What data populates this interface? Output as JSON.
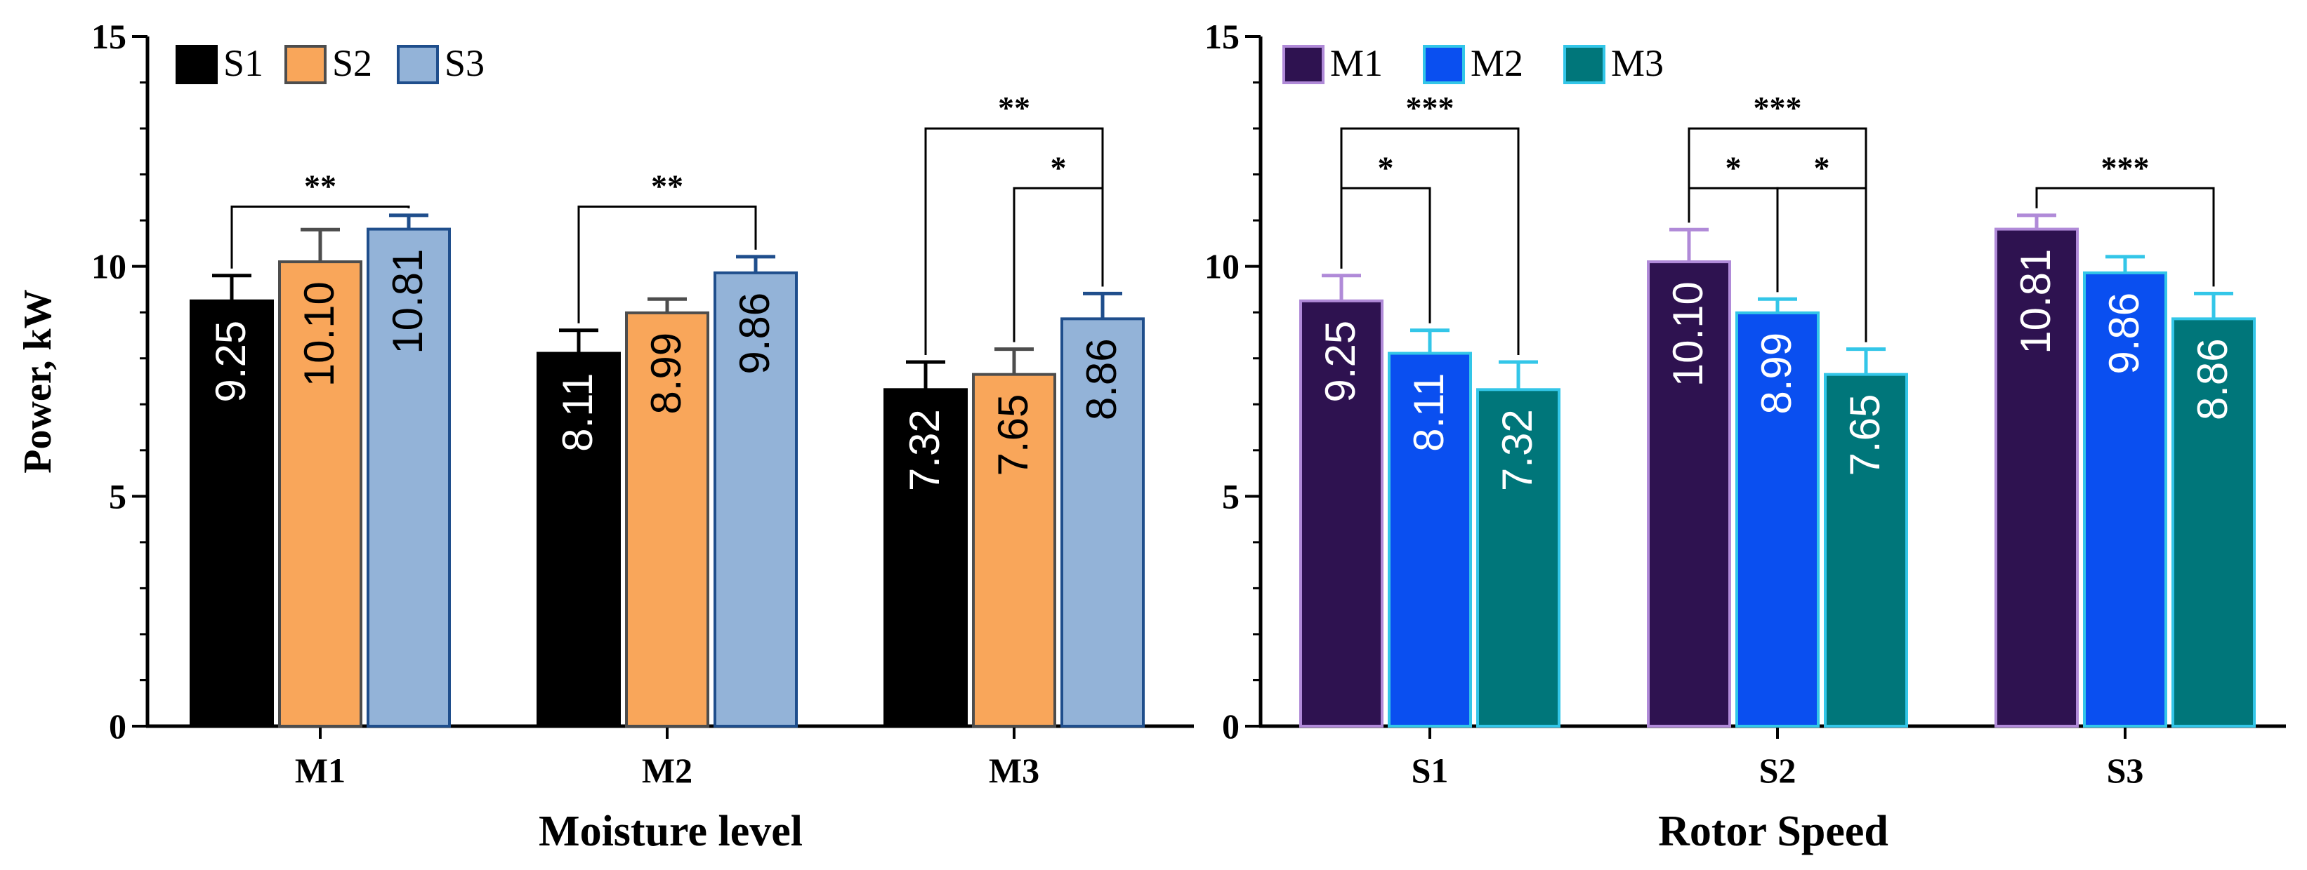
{
  "chart_data": [
    {
      "type": "bar",
      "title": "",
      "xlabel": "Moisture level",
      "ylabel": "Power, kW",
      "ylim": [
        0,
        15
      ],
      "yticks": [
        0,
        5,
        10,
        15
      ],
      "categories": [
        "M1",
        "M2",
        "M3"
      ],
      "series": [
        {
          "name": "S1",
          "values": [
            9.25,
            8.11,
            7.32
          ],
          "errors": [
            0.55,
            0.5,
            0.6
          ],
          "labels": [
            "9.25",
            "8.11",
            "7.32"
          ],
          "fill": "#000000",
          "stroke": "#000000",
          "label_color": "#ffffff"
        },
        {
          "name": "S2",
          "values": [
            10.1,
            8.99,
            7.65
          ],
          "errors": [
            0.7,
            0.3,
            0.55
          ],
          "labels": [
            "10.10",
            "8.99",
            "7.65"
          ],
          "fill": "#f9a65a",
          "stroke": "#4d4d4d",
          "label_color": "#000000"
        },
        {
          "name": "S3",
          "values": [
            10.81,
            9.86,
            8.86
          ],
          "errors": [
            0.3,
            0.35,
            0.55
          ],
          "labels": [
            "10.81",
            "9.86",
            "8.86"
          ],
          "fill": "#93b3d8",
          "stroke": "#1f4e8c",
          "label_color": "#000000"
        }
      ],
      "significance": [
        {
          "category": 0,
          "from": 0,
          "to": 2,
          "level": 11.3,
          "label": "**"
        },
        {
          "category": 1,
          "from": 0,
          "to": 2,
          "level": 11.3,
          "label": "**"
        },
        {
          "category": 2,
          "from": 0,
          "to": 2,
          "level": 13.0,
          "label": "**"
        },
        {
          "category": 2,
          "from": 1,
          "to": 2,
          "level": 11.7,
          "label": "*"
        }
      ]
    },
    {
      "type": "bar",
      "title": "",
      "xlabel": "Rotor Speed",
      "ylabel": "",
      "ylim": [
        0,
        15
      ],
      "yticks": [
        0,
        5,
        10,
        15
      ],
      "categories": [
        "S1",
        "S2",
        "S3"
      ],
      "series": [
        {
          "name": "M1",
          "values": [
            9.25,
            10.1,
            10.81
          ],
          "errors": [
            0.55,
            0.7,
            0.3
          ],
          "labels": [
            "9.25",
            "10.10",
            "10.81"
          ],
          "fill": "#2e1250",
          "stroke": "#b08ad8",
          "label_color": "#ffffff"
        },
        {
          "name": "M2",
          "values": [
            8.11,
            8.99,
            9.86
          ],
          "errors": [
            0.5,
            0.3,
            0.35
          ],
          "labels": [
            "8.11",
            "8.99",
            "9.86"
          ],
          "fill": "#0a4ff0",
          "stroke": "#33c6e8",
          "label_color": "#ffffff"
        },
        {
          "name": "M3",
          "values": [
            7.32,
            7.65,
            8.86
          ],
          "errors": [
            0.6,
            0.55,
            0.55
          ],
          "labels": [
            "7.32",
            "7.65",
            "8.86"
          ],
          "fill": "#00767a",
          "stroke": "#33c6e8",
          "label_color": "#ffffff"
        }
      ],
      "significance": [
        {
          "category": 0,
          "from": 0,
          "to": 2,
          "level": 13.0,
          "label": "***"
        },
        {
          "category": 0,
          "from": 0,
          "to": 1,
          "level": 11.7,
          "label": "*"
        },
        {
          "category": 1,
          "from": 0,
          "to": 2,
          "level": 13.0,
          "label": "***"
        },
        {
          "category": 1,
          "from": 0,
          "to": 1,
          "level": 11.7,
          "label": "*"
        },
        {
          "category": 1,
          "from": 1,
          "to": 2,
          "level": 11.7,
          "label": "*"
        },
        {
          "category": 2,
          "from": 0,
          "to": 2,
          "level": 11.7,
          "label": "***"
        }
      ]
    }
  ]
}
